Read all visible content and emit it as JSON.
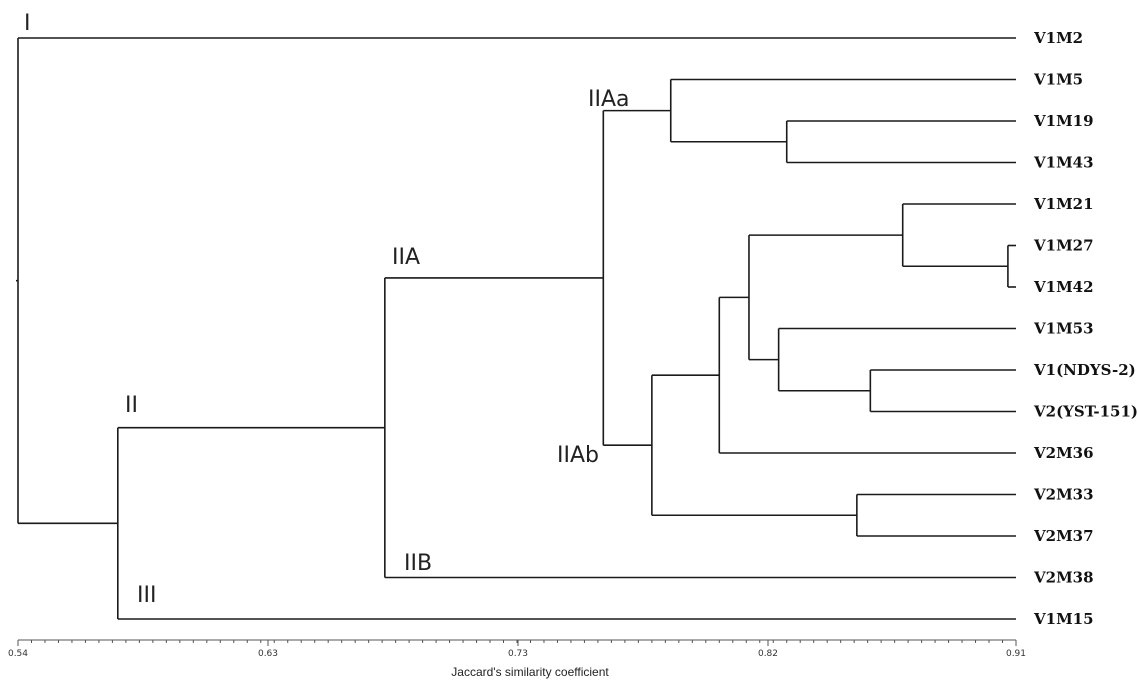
{
  "chart_data": {
    "type": "dendrogram",
    "xlabel": "Jaccard's similarity coefficient",
    "xlim": [
      0.54,
      0.91
    ],
    "xticks": [
      "0.54",
      "0.63",
      "0.73",
      "0.82",
      "0.91"
    ],
    "leaves": [
      "V1M2",
      "V1M5",
      "V1M19",
      "V1M43",
      "V1M21",
      "V1M27",
      "V1M42",
      "V1M53",
      "V1(NDYS-2)",
      "V2(YST-151)",
      "V2M36",
      "V2M33",
      "V2M37",
      "V2M38",
      "V1M15"
    ],
    "cluster_labels": [
      "I",
      "II",
      "III",
      "IIA",
      "IIB",
      "IIAa",
      "IIAb"
    ],
    "tree": {
      "h": 0.54,
      "children": [
        {
          "leaf": "V1M2"
        },
        {
          "h": 0.577,
          "label": "II",
          "children": [
            {
              "h": 0.676,
              "label": "IIA",
              "children": [
                {
                  "h": 0.757,
                  "label": "IIAa",
                  "children": [
                    {
                      "leaf": "V1M5"
                    },
                    {
                      "h": 0.782,
                      "children": [
                        {
                          "leaf": "V1M5",
                          "skip": true
                        }
                      ]
                    }
                  ]
                }
              ]
            }
          ]
        }
      ]
    }
  }
}
